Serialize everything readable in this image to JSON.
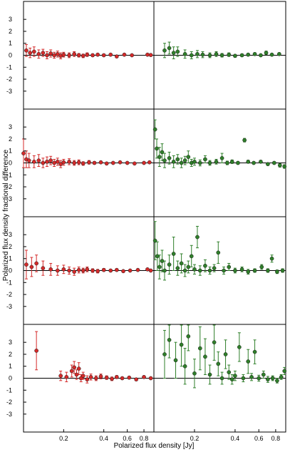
{
  "chart_data": {
    "type": "scatter",
    "xlabel": "Polarized flux density [Jy]",
    "ylabel": "Polarized flux density fractional difference",
    "x_scale": "log",
    "xlim_left": [
      0.1,
      0.95
    ],
    "xlim_right": [
      0.1,
      0.95
    ],
    "xticks": [
      {
        "value": 0.2,
        "label": "0.2"
      },
      {
        "value": 0.4,
        "label": "0.4"
      },
      {
        "value": 0.6,
        "label": "0.6"
      },
      {
        "value": 0.8,
        "label": "0.8"
      }
    ],
    "ylim": [
      -4.5,
      4.5
    ],
    "yticks": [
      {
        "value": 3,
        "label": "3"
      },
      {
        "value": 2,
        "label": "2"
      },
      {
        "value": 1,
        "label": "1"
      },
      {
        "value": 0,
        "label": "0"
      },
      {
        "value": -1,
        "label": "-1"
      },
      {
        "value": -2,
        "label": "-2"
      },
      {
        "value": -3,
        "label": "-3"
      }
    ],
    "colors": {
      "left": "#d42a2a",
      "right": "#2f7f2a",
      "zero_line": "#000000"
    },
    "rows": [
      {
        "left": [
          {
            "x": 0.105,
            "y": 0.4,
            "e": 0.5
          },
          {
            "x": 0.112,
            "y": 0.2,
            "e": 0.4
          },
          {
            "x": 0.12,
            "y": 0.3,
            "e": 0.4
          },
          {
            "x": 0.13,
            "y": 0.1,
            "e": 0.35
          },
          {
            "x": 0.14,
            "y": 0.2,
            "e": 0.3
          },
          {
            "x": 0.15,
            "y": 0.0,
            "e": 0.3
          },
          {
            "x": 0.16,
            "y": 0.15,
            "e": 0.3
          },
          {
            "x": 0.17,
            "y": 0.0,
            "e": 0.25
          },
          {
            "x": 0.18,
            "y": 0.1,
            "e": 0.25
          },
          {
            "x": 0.19,
            "y": -0.05,
            "e": 0.25
          },
          {
            "x": 0.2,
            "y": 0.05,
            "e": 0.2
          },
          {
            "x": 0.22,
            "y": 0.0,
            "e": 0.2
          },
          {
            "x": 0.24,
            "y": 0.1,
            "e": 0.2
          },
          {
            "x": 0.26,
            "y": 0.0,
            "e": 0.15
          },
          {
            "x": 0.28,
            "y": -0.05,
            "e": 0.15
          },
          {
            "x": 0.3,
            "y": 0.05,
            "e": 0.15
          },
          {
            "x": 0.33,
            "y": 0.0,
            "e": 0.12
          },
          {
            "x": 0.36,
            "y": 0.05,
            "e": 0.1
          },
          {
            "x": 0.4,
            "y": 0.0,
            "e": 0.1
          },
          {
            "x": 0.45,
            "y": 0.05,
            "e": 0.08
          },
          {
            "x": 0.5,
            "y": -0.1,
            "e": 0.08
          },
          {
            "x": 0.57,
            "y": 0.05,
            "e": 0.06
          },
          {
            "x": 0.65,
            "y": 0.0,
            "e": 0.06
          },
          {
            "x": 0.85,
            "y": 0.05,
            "e": 0.05
          },
          {
            "x": 0.9,
            "y": 0.02,
            "e": 0.05
          }
        ],
        "right": [
          {
            "x": 0.12,
            "y": 0.4,
            "e": 0.6
          },
          {
            "x": 0.13,
            "y": 0.6,
            "e": 0.5
          },
          {
            "x": 0.14,
            "y": 0.2,
            "e": 0.5
          },
          {
            "x": 0.15,
            "y": 0.3,
            "e": 0.4
          },
          {
            "x": 0.17,
            "y": 0.1,
            "e": 0.35
          },
          {
            "x": 0.19,
            "y": 0.0,
            "e": 0.3
          },
          {
            "x": 0.21,
            "y": 0.1,
            "e": 0.3
          },
          {
            "x": 0.23,
            "y": 0.05,
            "e": 0.25
          },
          {
            "x": 0.26,
            "y": 0.0,
            "e": 0.2
          },
          {
            "x": 0.29,
            "y": 0.1,
            "e": 0.2
          },
          {
            "x": 0.32,
            "y": 0.0,
            "e": 0.15
          },
          {
            "x": 0.36,
            "y": 0.05,
            "e": 0.15
          },
          {
            "x": 0.4,
            "y": -0.05,
            "e": 0.12
          },
          {
            "x": 0.45,
            "y": 0.0,
            "e": 0.12
          },
          {
            "x": 0.5,
            "y": 0.05,
            "e": 0.1
          },
          {
            "x": 0.56,
            "y": 0.1,
            "e": 0.1
          },
          {
            "x": 0.62,
            "y": 0.0,
            "e": 0.1
          },
          {
            "x": 0.68,
            "y": 0.2,
            "e": 0.15
          },
          {
            "x": 0.75,
            "y": 0.05,
            "e": 0.1
          },
          {
            "x": 0.85,
            "y": 0.1,
            "e": 0.1
          }
        ]
      },
      {
        "left": [
          {
            "x": 0.1,
            "y": 0.8,
            "e": 1.2
          },
          {
            "x": 0.105,
            "y": 0.3,
            "e": 0.7
          },
          {
            "x": 0.11,
            "y": 0.2,
            "e": 0.6
          },
          {
            "x": 0.12,
            "y": 0.1,
            "e": 0.5
          },
          {
            "x": 0.13,
            "y": 0.2,
            "e": 0.5
          },
          {
            "x": 0.14,
            "y": 0.0,
            "e": 0.4
          },
          {
            "x": 0.15,
            "y": 0.1,
            "e": 0.4
          },
          {
            "x": 0.16,
            "y": 0.2,
            "e": 0.35
          },
          {
            "x": 0.17,
            "y": 0.0,
            "e": 0.3
          },
          {
            "x": 0.18,
            "y": 0.1,
            "e": 0.3
          },
          {
            "x": 0.19,
            "y": -0.1,
            "e": 0.3
          },
          {
            "x": 0.2,
            "y": 0.05,
            "e": 0.25
          },
          {
            "x": 0.22,
            "y": 0.1,
            "e": 0.25
          },
          {
            "x": 0.24,
            "y": 0.0,
            "e": 0.2
          },
          {
            "x": 0.26,
            "y": 0.05,
            "e": 0.2
          },
          {
            "x": 0.28,
            "y": -0.05,
            "e": 0.15
          },
          {
            "x": 0.31,
            "y": 0.05,
            "e": 0.15
          },
          {
            "x": 0.34,
            "y": 0.0,
            "e": 0.12
          },
          {
            "x": 0.38,
            "y": 0.05,
            "e": 0.1
          },
          {
            "x": 0.42,
            "y": -0.05,
            "e": 0.1
          },
          {
            "x": 0.47,
            "y": 0.0,
            "e": 0.08
          },
          {
            "x": 0.53,
            "y": 0.05,
            "e": 0.08
          },
          {
            "x": 0.6,
            "y": 0.0,
            "e": 0.06
          },
          {
            "x": 0.68,
            "y": -0.05,
            "e": 0.06
          },
          {
            "x": 0.8,
            "y": 0.0,
            "e": 0.05
          },
          {
            "x": 0.88,
            "y": 0.05,
            "e": 0.05
          }
        ],
        "right": [
          {
            "x": 0.102,
            "y": 2.8,
            "e": 0.8
          },
          {
            "x": 0.105,
            "y": 1.2,
            "e": 0.8
          },
          {
            "x": 0.11,
            "y": 0.5,
            "e": 0.8
          },
          {
            "x": 0.115,
            "y": 0.9,
            "e": 0.7
          },
          {
            "x": 0.12,
            "y": 0.2,
            "e": 0.6
          },
          {
            "x": 0.13,
            "y": 0.4,
            "e": 0.5
          },
          {
            "x": 0.14,
            "y": 0.1,
            "e": 0.5
          },
          {
            "x": 0.15,
            "y": 0.3,
            "e": 0.4
          },
          {
            "x": 0.16,
            "y": 0.0,
            "e": 0.4
          },
          {
            "x": 0.17,
            "y": 0.2,
            "e": 0.35
          },
          {
            "x": 0.18,
            "y": 0.5,
            "e": 0.5
          },
          {
            "x": 0.19,
            "y": 0.0,
            "e": 0.3
          },
          {
            "x": 0.2,
            "y": 0.1,
            "e": 0.3
          },
          {
            "x": 0.22,
            "y": 0.0,
            "e": 0.25
          },
          {
            "x": 0.24,
            "y": 0.3,
            "e": 0.3
          },
          {
            "x": 0.26,
            "y": 0.0,
            "e": 0.2
          },
          {
            "x": 0.29,
            "y": 0.1,
            "e": 0.2
          },
          {
            "x": 0.32,
            "y": 0.4,
            "e": 0.4
          },
          {
            "x": 0.35,
            "y": 0.0,
            "e": 0.15
          },
          {
            "x": 0.38,
            "y": 0.1,
            "e": 0.15
          },
          {
            "x": 0.42,
            "y": 0.0,
            "e": 0.12
          },
          {
            "x": 0.47,
            "y": 1.9,
            "e": 0.15
          },
          {
            "x": 0.5,
            "y": 0.1,
            "e": 0.12
          },
          {
            "x": 0.55,
            "y": 0.0,
            "e": 0.1
          },
          {
            "x": 0.62,
            "y": 0.1,
            "e": 0.1
          },
          {
            "x": 0.7,
            "y": -0.1,
            "e": 0.1
          },
          {
            "x": 0.78,
            "y": 0.0,
            "e": 0.1
          },
          {
            "x": 0.86,
            "y": -0.2,
            "e": 0.15
          },
          {
            "x": 0.93,
            "y": -0.3,
            "e": 0.15
          }
        ]
      },
      {
        "left": [
          {
            "x": 0.105,
            "y": 0.5,
            "e": 1.2
          },
          {
            "x": 0.115,
            "y": 0.3,
            "e": 0.8
          },
          {
            "x": 0.125,
            "y": 0.6,
            "e": 0.7
          },
          {
            "x": 0.14,
            "y": 0.2,
            "e": 0.6
          },
          {
            "x": 0.16,
            "y": 0.1,
            "e": 0.5
          },
          {
            "x": 0.18,
            "y": 0.0,
            "e": 0.4
          },
          {
            "x": 0.2,
            "y": 0.1,
            "e": 0.35
          },
          {
            "x": 0.22,
            "y": 0.0,
            "e": 0.3
          },
          {
            "x": 0.24,
            "y": -0.1,
            "e": 0.3
          },
          {
            "x": 0.26,
            "y": 0.05,
            "e": 0.25
          },
          {
            "x": 0.28,
            "y": 0.0,
            "e": 0.2
          },
          {
            "x": 0.3,
            "y": 0.1,
            "e": 0.2
          },
          {
            "x": 0.33,
            "y": 0.0,
            "e": 0.15
          },
          {
            "x": 0.36,
            "y": -0.05,
            "e": 0.15
          },
          {
            "x": 0.4,
            "y": 0.05,
            "e": 0.12
          },
          {
            "x": 0.45,
            "y": 0.0,
            "e": 0.1
          },
          {
            "x": 0.5,
            "y": 0.05,
            "e": 0.1
          },
          {
            "x": 0.56,
            "y": -0.05,
            "e": 0.08
          },
          {
            "x": 0.63,
            "y": 0.0,
            "e": 0.08
          },
          {
            "x": 0.72,
            "y": 0.05,
            "e": 0.06
          },
          {
            "x": 0.85,
            "y": 0.1,
            "e": 0.06
          },
          {
            "x": 0.9,
            "y": 0.0,
            "e": 0.05
          }
        ],
        "right": [
          {
            "x": 0.102,
            "y": 2.5,
            "e": 1.6
          },
          {
            "x": 0.106,
            "y": 1.2,
            "e": 1.2
          },
          {
            "x": 0.11,
            "y": 0.3,
            "e": 1.0
          },
          {
            "x": 0.115,
            "y": 0.8,
            "e": 0.9
          },
          {
            "x": 0.12,
            "y": 0.0,
            "e": 0.8
          },
          {
            "x": 0.13,
            "y": 0.5,
            "e": 0.8
          },
          {
            "x": 0.14,
            "y": 1.4,
            "e": 1.4
          },
          {
            "x": 0.15,
            "y": 0.2,
            "e": 0.6
          },
          {
            "x": 0.16,
            "y": 0.6,
            "e": 0.8
          },
          {
            "x": 0.17,
            "y": 0.0,
            "e": 0.5
          },
          {
            "x": 0.18,
            "y": 0.3,
            "e": 0.5
          },
          {
            "x": 0.19,
            "y": 1.2,
            "e": 0.9
          },
          {
            "x": 0.2,
            "y": 0.1,
            "e": 0.4
          },
          {
            "x": 0.21,
            "y": 2.8,
            "e": 0.9
          },
          {
            "x": 0.22,
            "y": 0.0,
            "e": 0.4
          },
          {
            "x": 0.24,
            "y": 0.4,
            "e": 0.5
          },
          {
            "x": 0.26,
            "y": 0.0,
            "e": 0.3
          },
          {
            "x": 0.28,
            "y": 0.2,
            "e": 0.3
          },
          {
            "x": 0.3,
            "y": 1.5,
            "e": 0.9
          },
          {
            "x": 0.33,
            "y": 0.0,
            "e": 0.3
          },
          {
            "x": 0.36,
            "y": 0.3,
            "e": 0.3
          },
          {
            "x": 0.4,
            "y": 0.0,
            "e": 0.2
          },
          {
            "x": 0.45,
            "y": 0.1,
            "e": 0.2
          },
          {
            "x": 0.5,
            "y": -0.1,
            "e": 0.2
          },
          {
            "x": 0.56,
            "y": 0.0,
            "e": 0.15
          },
          {
            "x": 0.63,
            "y": 0.3,
            "e": 0.2
          },
          {
            "x": 0.7,
            "y": 0.0,
            "e": 0.15
          },
          {
            "x": 0.75,
            "y": 1.0,
            "e": 0.3
          },
          {
            "x": 0.82,
            "y": -0.1,
            "e": 0.15
          },
          {
            "x": 0.9,
            "y": 0.0,
            "e": 0.15
          }
        ]
      },
      {
        "left": [
          {
            "x": 0.125,
            "y": 2.3,
            "e": 1.6
          },
          {
            "x": 0.19,
            "y": 0.2,
            "e": 0.4
          },
          {
            "x": 0.21,
            "y": 0.1,
            "e": 0.4
          },
          {
            "x": 0.23,
            "y": 0.6,
            "e": 0.5
          },
          {
            "x": 0.24,
            "y": 0.9,
            "e": 0.5
          },
          {
            "x": 0.25,
            "y": 0.3,
            "e": 0.4
          },
          {
            "x": 0.26,
            "y": 0.8,
            "e": 0.5
          },
          {
            "x": 0.27,
            "y": 0.0,
            "e": 0.3
          },
          {
            "x": 0.28,
            "y": 0.2,
            "e": 0.3
          },
          {
            "x": 0.3,
            "y": -0.1,
            "e": 0.3
          },
          {
            "x": 0.32,
            "y": 0.1,
            "e": 0.25
          },
          {
            "x": 0.35,
            "y": 0.0,
            "e": 0.2
          },
          {
            "x": 0.38,
            "y": 0.15,
            "e": 0.2
          },
          {
            "x": 0.42,
            "y": 0.05,
            "e": 0.15
          },
          {
            "x": 0.46,
            "y": -0.05,
            "e": 0.15
          },
          {
            "x": 0.5,
            "y": 0.1,
            "e": 0.12
          },
          {
            "x": 0.55,
            "y": 0.0,
            "e": 0.1
          },
          {
            "x": 0.62,
            "y": 0.05,
            "e": 0.1
          },
          {
            "x": 0.7,
            "y": -0.1,
            "e": 0.1
          },
          {
            "x": 0.8,
            "y": 0.1,
            "e": 0.08
          },
          {
            "x": 0.9,
            "y": 0.0,
            "e": 0.08
          }
        ],
        "right": [
          {
            "x": 0.12,
            "y": 2.0,
            "e": 2.0
          },
          {
            "x": 0.13,
            "y": 3.2,
            "e": 1.5
          },
          {
            "x": 0.145,
            "y": 1.5,
            "e": 1.5
          },
          {
            "x": 0.16,
            "y": 2.8,
            "e": 1.8
          },
          {
            "x": 0.17,
            "y": 1.0,
            "e": 1.5
          },
          {
            "x": 0.18,
            "y": 3.5,
            "e": 1.2
          },
          {
            "x": 0.2,
            "y": 0.4,
            "e": 1.2
          },
          {
            "x": 0.22,
            "y": 2.5,
            "e": 1.8
          },
          {
            "x": 0.24,
            "y": 1.8,
            "e": 1.5
          },
          {
            "x": 0.26,
            "y": 0.3,
            "e": 0.8
          },
          {
            "x": 0.28,
            "y": 3.0,
            "e": 1.5
          },
          {
            "x": 0.3,
            "y": 1.2,
            "e": 1.0
          },
          {
            "x": 0.32,
            "y": 0.0,
            "e": 0.5
          },
          {
            "x": 0.34,
            "y": 2.0,
            "e": 1.2
          },
          {
            "x": 0.36,
            "y": 0.5,
            "e": 0.6
          },
          {
            "x": 0.38,
            "y": -0.1,
            "e": 0.4
          },
          {
            "x": 0.4,
            "y": 0.2,
            "e": 0.4
          },
          {
            "x": 0.43,
            "y": 2.6,
            "e": 1.2
          },
          {
            "x": 0.46,
            "y": 0.0,
            "e": 0.3
          },
          {
            "x": 0.5,
            "y": 1.4,
            "e": 1.0
          },
          {
            "x": 0.53,
            "y": 0.1,
            "e": 0.3
          },
          {
            "x": 0.56,
            "y": 2.2,
            "e": 1.0
          },
          {
            "x": 0.6,
            "y": 0.0,
            "e": 0.25
          },
          {
            "x": 0.65,
            "y": 0.3,
            "e": 0.3
          },
          {
            "x": 0.7,
            "y": -0.1,
            "e": 0.25
          },
          {
            "x": 0.76,
            "y": 0.0,
            "e": 0.2
          },
          {
            "x": 0.82,
            "y": -0.2,
            "e": 0.2
          },
          {
            "x": 0.88,
            "y": 0.1,
            "e": 0.2
          },
          {
            "x": 0.93,
            "y": 0.6,
            "e": 0.3
          }
        ]
      }
    ]
  }
}
